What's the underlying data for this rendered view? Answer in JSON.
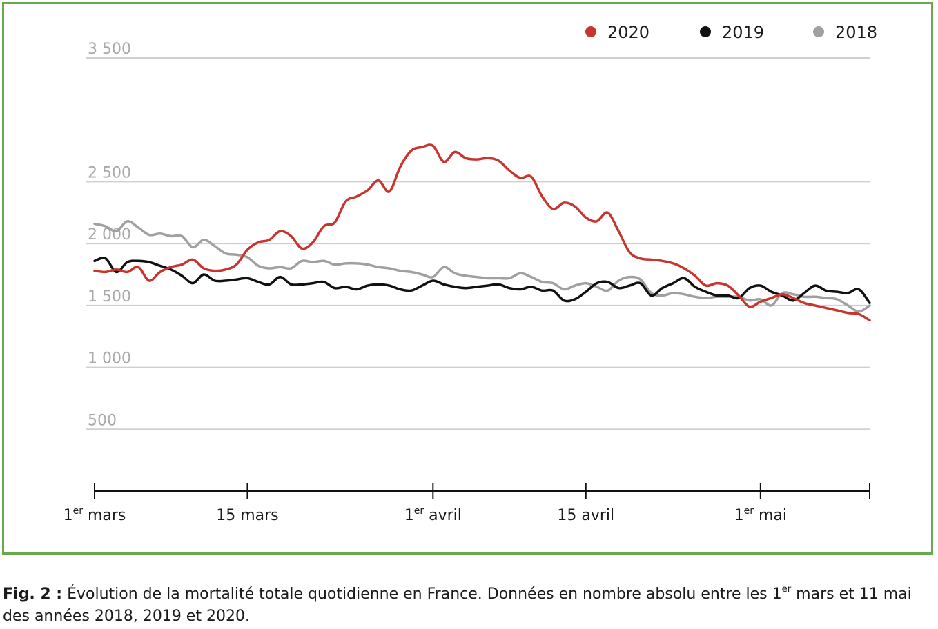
{
  "chart_data": {
    "type": "line",
    "xlabel": "",
    "ylabel": "",
    "ylim": [
      0,
      3500
    ],
    "xlim": [
      1,
      72
    ],
    "grid": true,
    "legend_position": "top-right",
    "y_ticks": [
      {
        "value": 500,
        "label": "500"
      },
      {
        "value": 1000,
        "label": "1 000"
      },
      {
        "value": 1500,
        "label": "1 500"
      },
      {
        "value": 2000,
        "label": "2 000"
      },
      {
        "value": 2500,
        "label": "2 500"
      },
      {
        "value": 3500,
        "label": "3 500"
      }
    ],
    "x_ticks": [
      {
        "day": 1,
        "main": "1",
        "sup": "er",
        "rest": " mars"
      },
      {
        "day": 15,
        "main": "15 mars",
        "sup": "",
        "rest": ""
      },
      {
        "day": 32,
        "main": "1",
        "sup": "er",
        "rest": " avril"
      },
      {
        "day": 46,
        "main": "15 avril",
        "sup": "",
        "rest": ""
      },
      {
        "day": 62,
        "main": "1",
        "sup": "er",
        "rest": " mai"
      },
      {
        "day": 72,
        "main": "",
        "sup": "",
        "rest": ""
      }
    ],
    "series": [
      {
        "name": "2020",
        "color": "#c8352f",
        "x": [
          1,
          2,
          3,
          4,
          5,
          6,
          7,
          8,
          9,
          10,
          11,
          12,
          13,
          14,
          15,
          16,
          17,
          18,
          19,
          20,
          21,
          22,
          23,
          24,
          25,
          26,
          27,
          28,
          29,
          30,
          31,
          32,
          33,
          34,
          35,
          36,
          37,
          38,
          39,
          40,
          41,
          42,
          43,
          44,
          45,
          46,
          47,
          48,
          49,
          50,
          51,
          52,
          53,
          54,
          55,
          56,
          57,
          58,
          59,
          60,
          61,
          62,
          63,
          64,
          65,
          66,
          67,
          68,
          69,
          70,
          71,
          72
        ],
        "values": [
          1780,
          1770,
          1790,
          1770,
          1810,
          1700,
          1770,
          1810,
          1830,
          1870,
          1800,
          1780,
          1790,
          1830,
          1950,
          2010,
          2030,
          2100,
          2060,
          1960,
          2010,
          2140,
          2170,
          2340,
          2380,
          2430,
          2510,
          2420,
          2620,
          2750,
          2780,
          2790,
          2660,
          2740,
          2690,
          2680,
          2690,
          2670,
          2590,
          2530,
          2540,
          2380,
          2280,
          2330,
          2300,
          2210,
          2180,
          2250,
          2100,
          1930,
          1880,
          1870,
          1860,
          1840,
          1800,
          1740,
          1660,
          1680,
          1660,
          1580,
          1490,
          1530,
          1560,
          1590,
          1560,
          1520,
          1500,
          1480,
          1460,
          1440,
          1430,
          1380
        ]
      },
      {
        "name": "2019",
        "color": "#111111",
        "x": [
          1,
          2,
          3,
          4,
          5,
          6,
          7,
          8,
          9,
          10,
          11,
          12,
          13,
          14,
          15,
          16,
          17,
          18,
          19,
          20,
          21,
          22,
          23,
          24,
          25,
          26,
          27,
          28,
          29,
          30,
          31,
          32,
          33,
          34,
          35,
          36,
          37,
          38,
          39,
          40,
          41,
          42,
          43,
          44,
          45,
          46,
          47,
          48,
          49,
          50,
          51,
          52,
          53,
          54,
          55,
          56,
          57,
          58,
          59,
          60,
          61,
          62,
          63,
          64,
          65,
          66,
          67,
          68,
          69,
          70,
          71,
          72
        ],
        "values": [
          1860,
          1880,
          1770,
          1850,
          1860,
          1850,
          1820,
          1790,
          1740,
          1680,
          1750,
          1700,
          1700,
          1710,
          1720,
          1690,
          1670,
          1730,
          1670,
          1670,
          1680,
          1690,
          1640,
          1650,
          1630,
          1660,
          1670,
          1660,
          1630,
          1620,
          1660,
          1700,
          1670,
          1650,
          1640,
          1650,
          1660,
          1670,
          1640,
          1630,
          1650,
          1620,
          1620,
          1540,
          1550,
          1610,
          1680,
          1690,
          1640,
          1660,
          1680,
          1580,
          1640,
          1680,
          1720,
          1650,
          1610,
          1580,
          1580,
          1560,
          1640,
          1660,
          1610,
          1580,
          1540,
          1600,
          1660,
          1620,
          1610,
          1600,
          1630,
          1520
        ]
      },
      {
        "name": "2018",
        "color": "#a0a0a0",
        "x": [
          1,
          2,
          3,
          4,
          5,
          6,
          7,
          8,
          9,
          10,
          11,
          12,
          13,
          14,
          15,
          16,
          17,
          18,
          19,
          20,
          21,
          22,
          23,
          24,
          25,
          26,
          27,
          28,
          29,
          30,
          31,
          32,
          33,
          34,
          35,
          36,
          37,
          38,
          39,
          40,
          41,
          42,
          43,
          44,
          45,
          46,
          47,
          48,
          49,
          50,
          51,
          52,
          53,
          54,
          55,
          56,
          57,
          58,
          59,
          60,
          61,
          62,
          63,
          64,
          65,
          66,
          67,
          68,
          69,
          70,
          71,
          72
        ],
        "values": [
          2160,
          2140,
          2100,
          2180,
          2130,
          2070,
          2080,
          2060,
          2060,
          1970,
          2030,
          1980,
          1920,
          1910,
          1890,
          1820,
          1800,
          1810,
          1800,
          1860,
          1850,
          1860,
          1830,
          1840,
          1840,
          1830,
          1810,
          1800,
          1780,
          1770,
          1750,
          1730,
          1810,
          1760,
          1740,
          1730,
          1720,
          1720,
          1720,
          1760,
          1730,
          1690,
          1680,
          1630,
          1660,
          1680,
          1650,
          1620,
          1700,
          1730,
          1710,
          1600,
          1580,
          1600,
          1590,
          1570,
          1560,
          1570,
          1570,
          1570,
          1540,
          1550,
          1500,
          1600,
          1590,
          1570,
          1570,
          1560,
          1550,
          1500,
          1450,
          1500
        ]
      }
    ]
  },
  "caption": {
    "fig_label": "Fig. 2 :",
    "text_part1": " Évolution de la mortalité totale quotidienne en France. Données en nombre absolu entre les 1",
    "sup": "er",
    "text_part2": " mars et 11 mai des années 2018, 2019 et 2020."
  }
}
